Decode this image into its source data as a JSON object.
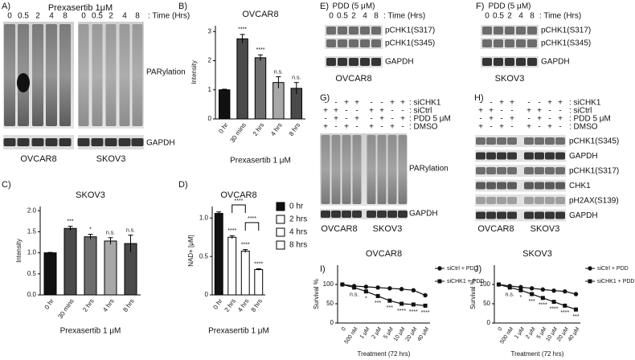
{
  "panels": [
    "A)",
    "B)",
    "C)",
    "D)",
    "E)",
    "F)",
    "G)",
    "H)",
    "I)",
    "J)"
  ],
  "blot_a": {
    "title": "Prexasertib 1μM",
    "time_label": ": Time (Hrs)",
    "times": [
      "0",
      "0.5",
      "2",
      "4",
      "8"
    ],
    "bands": [
      "PARylation",
      "GAPDH"
    ],
    "lines": [
      "OVCAR8",
      "SKOV3"
    ]
  },
  "blot_e": {
    "treatment": "PDD (5 μM)",
    "time_label": ": Time (Hrs)",
    "times": [
      "0",
      "0.5",
      "2",
      "4",
      "8"
    ],
    "bands": [
      "pCHK1(S317)",
      "pCHK1(S345)",
      "GAPDH"
    ],
    "line": "OVCAR8"
  },
  "blot_f": {
    "treatment": "PDD (5 μM)",
    "time_label": ": Time (Hrs)",
    "times": [
      "0",
      "0.5",
      "2",
      "4",
      "8"
    ],
    "bands": [
      "pCHK1(S317)",
      "pCHK1(S345)",
      "GAPDH"
    ],
    "line": "SKOV3"
  },
  "blot_g": {
    "conditions": [
      {
        "label": ": siCHK1",
        "signs": [
          "-",
          "-",
          "+",
          "+",
          "-",
          "-",
          "+",
          "+"
        ]
      },
      {
        "label": ": siCtrl",
        "signs": [
          "+",
          "+",
          "-",
          "-",
          "+",
          "+",
          "-",
          "-"
        ]
      },
      {
        "label": ": PDD 5 μM",
        "signs": [
          "-",
          "+",
          "-",
          "+",
          "-",
          "+",
          "-",
          "+"
        ]
      },
      {
        "label": ": DMSO",
        "signs": [
          "+",
          "-",
          "+",
          "-",
          "+",
          "-",
          "+",
          "-"
        ]
      }
    ],
    "bands": [
      "PARylation",
      "GAPDH"
    ],
    "lines": [
      "OVCAR8",
      "SKOV3"
    ]
  },
  "blot_h": {
    "conditions": [
      {
        "label": ": siCHK1",
        "signs": [
          "-",
          "-",
          "+",
          "+",
          "-",
          "-",
          "+",
          "+"
        ]
      },
      {
        "label": ": siCtrl",
        "signs": [
          "+",
          "+",
          "-",
          "-",
          "+",
          "+",
          "-",
          "-"
        ]
      },
      {
        "label": ": PDD 5 μM",
        "signs": [
          "-",
          "+",
          "-",
          "+",
          "-",
          "+",
          "-",
          "+"
        ]
      },
      {
        "label": ": DMSO",
        "signs": [
          "+",
          "-",
          "+",
          "-",
          "+",
          "-",
          "+",
          "-"
        ]
      }
    ],
    "bands": [
      "pCHK1(S345)",
      "GAPDH",
      "pCHK1(S317)",
      "CHK1",
      "pH2AX(S139)",
      "GAPDH"
    ],
    "lines": [
      "OVCAR8",
      "SKOV3"
    ]
  },
  "chart_data": [
    {
      "type": "bar",
      "title": "OVCAR8",
      "y_label": "Intensity",
      "x_label": "Prexasertib 1 μM",
      "categories": [
        "0 hr",
        "30 mins",
        "2 hrs",
        "4 hrs",
        "8 hrs"
      ],
      "values": [
        1.0,
        2.75,
        2.1,
        1.25,
        1.05
      ],
      "errors": [
        0.02,
        0.15,
        0.1,
        0.2,
        0.2
      ],
      "annotations": [
        null,
        "****",
        "****",
        "n.s.",
        "n.s."
      ],
      "colors": [
        "#111111",
        "#4a4a4a",
        "#6e6e6e",
        "#a8a8a8",
        "#4a4a4a"
      ],
      "ylim": [
        0,
        3.2
      ],
      "yticks": [
        0,
        1,
        2,
        3
      ]
    },
    {
      "type": "bar",
      "title": "SKOV3",
      "y_label": "Intensity",
      "x_label": "Prexasertib 1 μM",
      "categories": [
        "0 hr",
        "30 mins",
        "2 hrs",
        "4 hrs",
        "8 hrs"
      ],
      "values": [
        1.0,
        1.58,
        1.38,
        1.28,
        1.22
      ],
      "errors": [
        0.01,
        0.05,
        0.06,
        0.08,
        0.2
      ],
      "annotations": [
        null,
        "***",
        "*",
        "n.s.",
        "n.s."
      ],
      "colors": [
        "#111111",
        "#4a4a4a",
        "#6e6e6e",
        "#a8a8a8",
        "#4a4a4a"
      ],
      "ylim": [
        0,
        2.1
      ],
      "yticks": [
        {
          "value": 0,
          "label": "0.0"
        },
        0.5,
        {
          "value": 1,
          "label": "1.0"
        },
        1.5,
        {
          "value": 2,
          "label": "2.0"
        }
      ]
    },
    {
      "type": "bar",
      "title": "OVCAR8",
      "y_label": "NAD+ [μM]",
      "x_label": "Prexasertib 1 μM",
      "categories": [
        "0 hr",
        "2 hrs",
        "4 hrs",
        "8 hrs"
      ],
      "values": [
        1.06,
        0.75,
        0.57,
        0.33
      ],
      "errors": [
        0.02,
        0.02,
        0.02,
        0.01
      ],
      "annotations": [
        null,
        "****",
        "****",
        "****"
      ],
      "bracket_labels": [
        "****",
        "****"
      ],
      "colors": [
        "#111111",
        "#ffffff",
        "#ffffff",
        "#ffffff"
      ],
      "legend": "right",
      "ylim": [
        0,
        1.15
      ],
      "yticks": [
        0,
        0.5,
        {
          "value": 1,
          "label": "1.0"
        }
      ]
    },
    {
      "type": "line",
      "title": "OVCAR8",
      "y_label": "Survival %",
      "x_label": "Treatment (72 hrs)",
      "categories": [
        "0",
        "500 nM",
        "1 μM",
        "2 μM",
        "5 μM",
        "10 μM",
        "20 μM",
        "40 μM"
      ],
      "series": [
        {
          "name": "siCtrl + PDD",
          "color": "#111111",
          "marker": "circle",
          "values": [
            100,
            96,
            94,
            92,
            90,
            88,
            85,
            72
          ]
        },
        {
          "name": "siCHK1 + PDD",
          "color": "#111111",
          "marker": "square",
          "values": [
            100,
            92,
            82,
            70,
            58,
            50,
            48,
            45
          ]
        }
      ],
      "annotations": [
        null,
        "n.s.",
        "*",
        "***",
        "***",
        "****",
        "****",
        "****"
      ],
      "ylim": [
        0,
        150
      ],
      "yticks": [
        0,
        50,
        100
      ],
      "legend": "right"
    },
    {
      "type": "line",
      "title": "SKOV3",
      "y_label": "Survival %",
      "x_label": "Treatment (72 hrs)",
      "categories": [
        "0",
        "500 nM",
        "1 μM",
        "2 μM",
        "5 μM",
        "10 μM",
        "20 μM",
        "40 μM"
      ],
      "series": [
        {
          "name": "siCtrl + PDD",
          "color": "#111111",
          "marker": "circle",
          "values": [
            100,
            96,
            93,
            90,
            87,
            84,
            82,
            75
          ]
        },
        {
          "name": "siCHK1 + PDD",
          "color": "#111111",
          "marker": "square",
          "values": [
            100,
            92,
            85,
            75,
            65,
            55,
            45,
            35
          ]
        }
      ],
      "annotations": [
        null,
        "n.s.",
        "*",
        "***",
        "****",
        "****",
        "****",
        "***"
      ],
      "ylim": [
        0,
        150
      ],
      "yticks": [
        0,
        50,
        100
      ],
      "legend": "right"
    }
  ]
}
